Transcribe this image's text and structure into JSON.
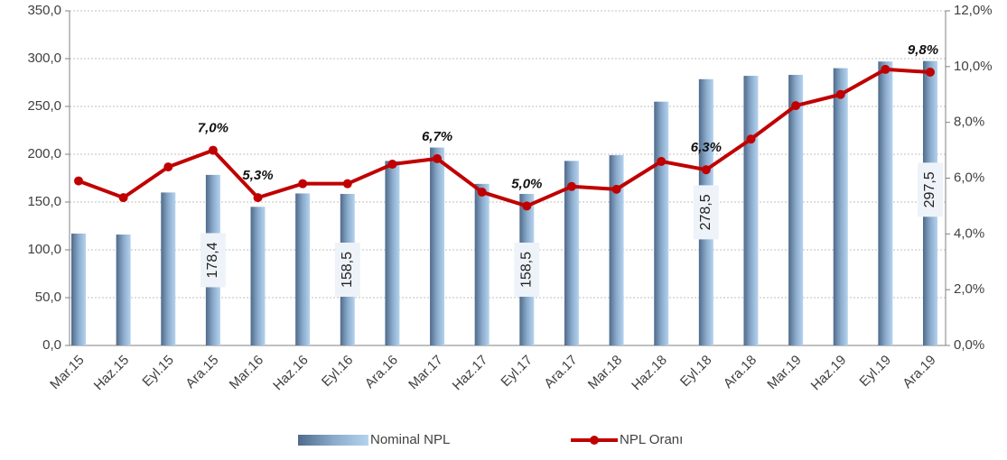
{
  "chart_data": {
    "type": "bar_line",
    "categories": [
      "Mar.15",
      "Haz.15",
      "Eyl.15",
      "Ara.15",
      "Mar.16",
      "Haz.16",
      "Eyl.16",
      "Ara.16",
      "Mar.17",
      "Haz.17",
      "Eyl.17",
      "Ara.17",
      "Mar.18",
      "Haz.18",
      "Eyl.18",
      "Ara.18",
      "Mar.19",
      "Haz.19",
      "Eyl.19",
      "Ara.19"
    ],
    "series": [
      {
        "name": "Nominal NPL",
        "type": "bar",
        "color": "#7d9cbf",
        "values": [
          117,
          116,
          160,
          178.4,
          145,
          159,
          158.5,
          193,
          207,
          169,
          158.5,
          193,
          199,
          255,
          278.5,
          282,
          283,
          290,
          297,
          297.5
        ],
        "value_labels": [
          null,
          null,
          null,
          "178,4",
          null,
          null,
          "158,5",
          null,
          null,
          null,
          "158,5",
          null,
          null,
          null,
          "278,5",
          null,
          null,
          null,
          null,
          "297,5"
        ]
      },
      {
        "name": "NPL Oranı",
        "type": "line",
        "axis": "y2",
        "color": "#c00000",
        "values": [
          5.9,
          5.3,
          6.4,
          7.0,
          5.3,
          5.8,
          5.8,
          6.5,
          6.7,
          5.5,
          5.0,
          5.7,
          5.6,
          6.6,
          6.3,
          7.4,
          8.6,
          9.0,
          9.9,
          9.8
        ],
        "value_labels": [
          null,
          null,
          null,
          "7,0%",
          "5,3%",
          null,
          null,
          null,
          "6,7%",
          null,
          "5,0%",
          null,
          null,
          null,
          "6,3%",
          null,
          null,
          null,
          null,
          "9,8%"
        ]
      }
    ],
    "ylim": [
      0,
      350
    ],
    "yticks": [
      {
        "value": 0,
        "label": "0,0"
      },
      {
        "value": 50,
        "label": "50,0"
      },
      {
        "value": 100,
        "label": "100,0"
      },
      {
        "value": 150,
        "label": "150,0"
      },
      {
        "value": 200,
        "label": "200,0"
      },
      {
        "value": 250,
        "label": "250,0"
      },
      {
        "value": 300,
        "label": "300,0"
      },
      {
        "value": 350,
        "label": "350,0"
      }
    ],
    "y2lim": [
      0,
      12
    ],
    "y2ticks": [
      {
        "value": 0,
        "label": "0,0%"
      },
      {
        "value": 2,
        "label": "2,0%"
      },
      {
        "value": 4,
        "label": "4,0%"
      },
      {
        "value": 6,
        "label": "6,0%"
      },
      {
        "value": 8,
        "label": "8,0%"
      },
      {
        "value": 10,
        "label": "10,0%"
      },
      {
        "value": 12,
        "label": "12,0%"
      }
    ],
    "grid": true,
    "legend": "bottom"
  }
}
